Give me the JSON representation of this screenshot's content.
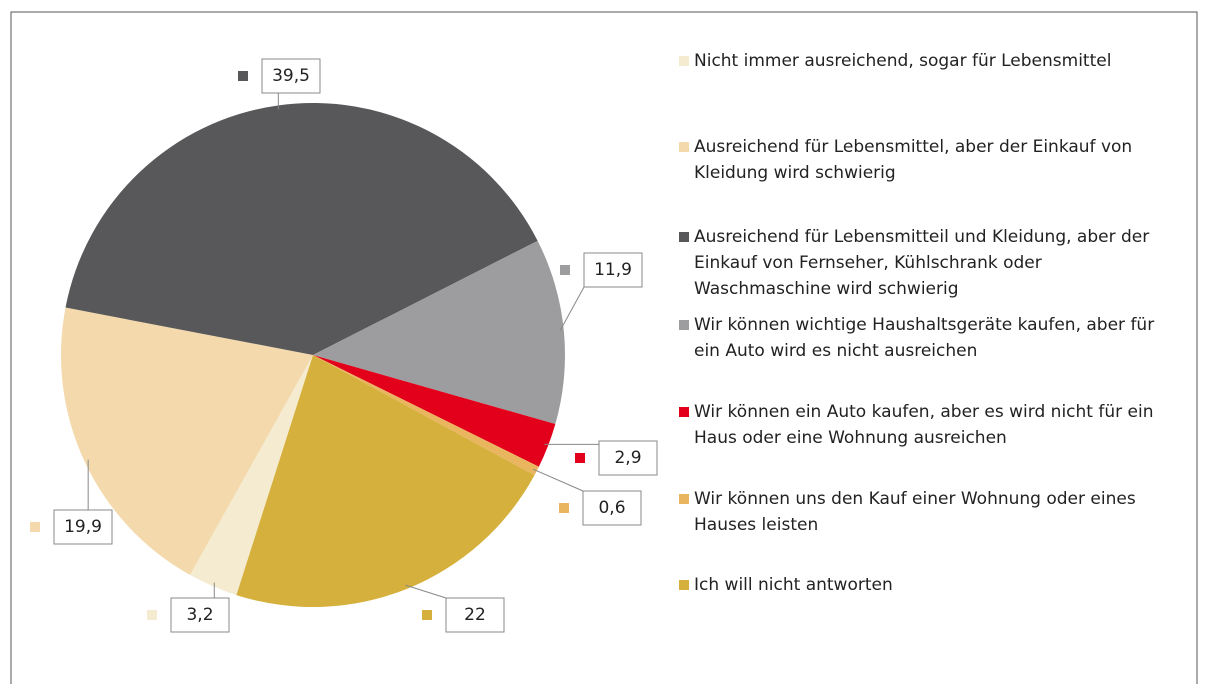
{
  "chart_data": {
    "type": "pie",
    "categories": [
      "Nicht immer ausreichend, sogar für Lebensmittel",
      "Ausreichend für Lebensmittel, aber der Einkauf von Kleidung wird schwierig",
      "Ausreichend für Lebensmitteil und Kleidung, aber der Einkauf von Fernseher, Kühlschrank oder Waschmaschine wird schwierig",
      "Wir können wichtige Haushaltsgeräte kaufen, aber für ein Auto wird es nicht ausreichen",
      "Wir können ein Auto kaufen, aber es wird nicht für ein Haus oder eine Wohnung ausreichen",
      "Wir können uns den Kauf einer Wohnung oder eines Hauses leisten",
      "Ich will nicht antworten"
    ],
    "values": [
      3.2,
      19.9,
      39.5,
      11.9,
      2.9,
      0.6,
      22
    ],
    "value_labels": [
      "3,2",
      "19,9",
      "39,5",
      "11,9",
      "2,9",
      "0,6",
      "22"
    ],
    "colors": [
      "#f4ebd0",
      "#f3d9ab",
      "#58585a",
      "#9d9d9f",
      "#e2001a",
      "#e9b55f",
      "#d6b03c"
    ],
    "legend": "right"
  }
}
